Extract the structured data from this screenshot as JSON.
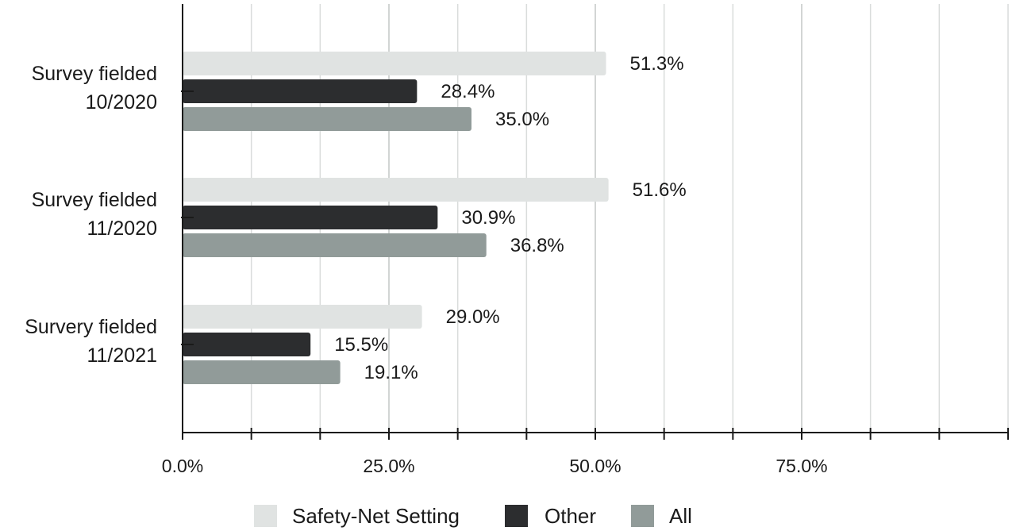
{
  "chart_data": {
    "type": "bar",
    "orientation": "horizontal",
    "categories": [
      [
        "Survey fielded",
        "10/2020"
      ],
      [
        "Survey fielded",
        "11/2020"
      ],
      [
        "Survery fielded",
        "11/2021"
      ]
    ],
    "series": [
      {
        "name": "Safety-Net Setting",
        "color": "#e0e3e2",
        "values": [
          51.3,
          51.6,
          29.0
        ],
        "labels": [
          "51.3%",
          "51.6%",
          "29.0%"
        ]
      },
      {
        "name": "Other",
        "color": "#2c2d2f",
        "values": [
          28.4,
          30.9,
          15.5
        ],
        "labels": [
          "28.4%",
          "30.9%",
          "15.5%"
        ]
      },
      {
        "name": "All",
        "color": "#919b99",
        "values": [
          35.0,
          36.8,
          19.1
        ],
        "labels": [
          "35.0%",
          "36.8%",
          "19.1%"
        ]
      }
    ],
    "xlim": [
      0,
      100
    ],
    "xticks": [
      0,
      25,
      50,
      75
    ],
    "xtick_labels": [
      "0.0%",
      "25.0%",
      "50.0%",
      "75.0%"
    ],
    "minor_gridlines_every": 8.33,
    "grid": true,
    "legend_position": "bottom-center"
  }
}
